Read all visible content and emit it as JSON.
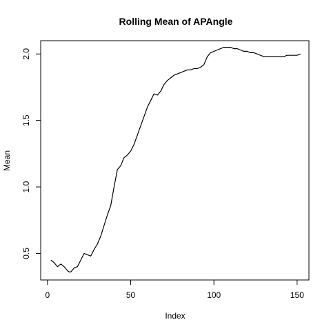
{
  "chart_data": {
    "type": "line",
    "title": "Rolling Mean of APAngle",
    "xlabel": "Index",
    "ylabel": "Mean",
    "xlim": [
      -4.1,
      157.1
    ],
    "ylim": [
      0.3,
      2.1
    ],
    "x_ticks": [
      "0",
      "50",
      "100",
      "150"
    ],
    "y_ticks": [
      "0.5",
      "1.0",
      "1.5",
      "2.0"
    ],
    "x_tick_values": [
      0,
      50,
      100,
      150
    ],
    "y_tick_values": [
      0.5,
      1.0,
      1.5,
      2.0
    ],
    "grid": false,
    "line_color": "#000000",
    "series": [
      {
        "x": [
          2,
          4,
          6,
          8,
          10,
          12,
          13,
          14,
          16,
          18,
          20,
          22,
          24,
          26,
          28,
          30,
          32,
          34,
          36,
          38,
          40,
          42,
          44,
          46,
          48,
          50,
          52,
          54,
          56,
          58,
          60,
          62,
          64,
          66,
          68,
          70,
          72,
          74,
          76,
          78,
          80,
          82,
          84,
          86,
          88,
          90,
          92,
          94,
          96,
          98,
          100,
          102,
          104,
          106,
          108,
          110,
          112,
          114,
          116,
          118,
          120,
          122,
          124,
          126,
          128,
          130,
          132,
          134,
          136,
          138,
          140,
          142,
          144,
          146,
          148,
          150,
          152
        ],
        "y": [
          0.45,
          0.43,
          0.4,
          0.42,
          0.4,
          0.37,
          0.36,
          0.36,
          0.39,
          0.4,
          0.45,
          0.5,
          0.49,
          0.48,
          0.53,
          0.57,
          0.63,
          0.71,
          0.79,
          0.86,
          1.0,
          1.13,
          1.16,
          1.22,
          1.24,
          1.27,
          1.32,
          1.39,
          1.46,
          1.53,
          1.6,
          1.65,
          1.7,
          1.69,
          1.72,
          1.77,
          1.8,
          1.82,
          1.84,
          1.85,
          1.86,
          1.87,
          1.88,
          1.88,
          1.89,
          1.89,
          1.9,
          1.92,
          1.98,
          2.01,
          2.02,
          2.03,
          2.04,
          2.05,
          2.05,
          2.05,
          2.04,
          2.04,
          2.03,
          2.02,
          2.02,
          2.01,
          2.01,
          2.0,
          1.99,
          1.98,
          1.98,
          1.98,
          1.98,
          1.98,
          1.98,
          1.98,
          1.99,
          1.99,
          1.99,
          1.99,
          2.0
        ]
      }
    ]
  }
}
